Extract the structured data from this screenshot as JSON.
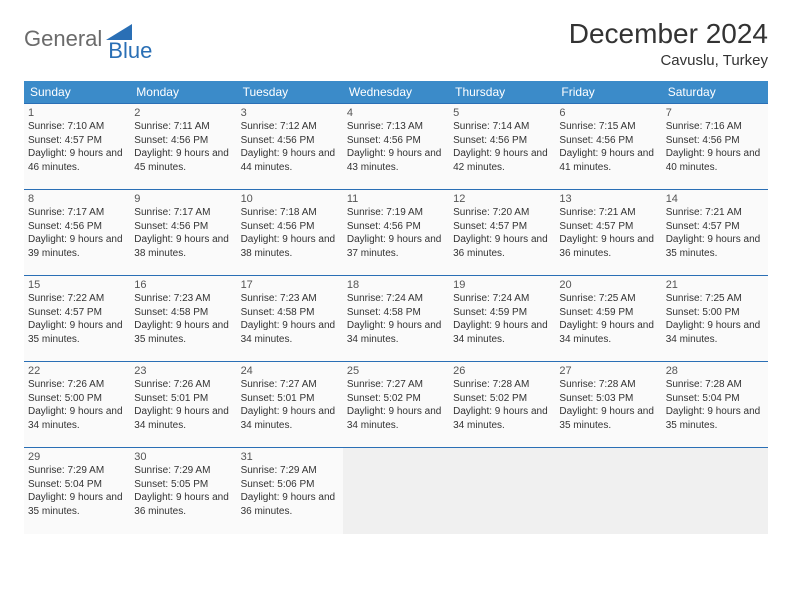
{
  "brand": {
    "general": "General",
    "blue": "Blue"
  },
  "title": "December 2024",
  "location": "Cavuslu, Turkey",
  "colors": {
    "header_bg": "#3b8bc9",
    "header_text": "#ffffff",
    "border": "#2a6fb5",
    "cell_bg": "#fafafa",
    "empty_bg": "#f0f0f0",
    "page_bg": "#ffffff",
    "text": "#333333",
    "logo_gray": "#6b6b6b",
    "logo_blue": "#2a6fb5"
  },
  "weekdays": [
    "Sunday",
    "Monday",
    "Tuesday",
    "Wednesday",
    "Thursday",
    "Friday",
    "Saturday"
  ],
  "days": [
    {
      "n": 1,
      "sr": "7:10 AM",
      "ss": "4:57 PM",
      "dl": "9 hours and 46 minutes."
    },
    {
      "n": 2,
      "sr": "7:11 AM",
      "ss": "4:56 PM",
      "dl": "9 hours and 45 minutes."
    },
    {
      "n": 3,
      "sr": "7:12 AM",
      "ss": "4:56 PM",
      "dl": "9 hours and 44 minutes."
    },
    {
      "n": 4,
      "sr": "7:13 AM",
      "ss": "4:56 PM",
      "dl": "9 hours and 43 minutes."
    },
    {
      "n": 5,
      "sr": "7:14 AM",
      "ss": "4:56 PM",
      "dl": "9 hours and 42 minutes."
    },
    {
      "n": 6,
      "sr": "7:15 AM",
      "ss": "4:56 PM",
      "dl": "9 hours and 41 minutes."
    },
    {
      "n": 7,
      "sr": "7:16 AM",
      "ss": "4:56 PM",
      "dl": "9 hours and 40 minutes."
    },
    {
      "n": 8,
      "sr": "7:17 AM",
      "ss": "4:56 PM",
      "dl": "9 hours and 39 minutes."
    },
    {
      "n": 9,
      "sr": "7:17 AM",
      "ss": "4:56 PM",
      "dl": "9 hours and 38 minutes."
    },
    {
      "n": 10,
      "sr": "7:18 AM",
      "ss": "4:56 PM",
      "dl": "9 hours and 38 minutes."
    },
    {
      "n": 11,
      "sr": "7:19 AM",
      "ss": "4:56 PM",
      "dl": "9 hours and 37 minutes."
    },
    {
      "n": 12,
      "sr": "7:20 AM",
      "ss": "4:57 PM",
      "dl": "9 hours and 36 minutes."
    },
    {
      "n": 13,
      "sr": "7:21 AM",
      "ss": "4:57 PM",
      "dl": "9 hours and 36 minutes."
    },
    {
      "n": 14,
      "sr": "7:21 AM",
      "ss": "4:57 PM",
      "dl": "9 hours and 35 minutes."
    },
    {
      "n": 15,
      "sr": "7:22 AM",
      "ss": "4:57 PM",
      "dl": "9 hours and 35 minutes."
    },
    {
      "n": 16,
      "sr": "7:23 AM",
      "ss": "4:58 PM",
      "dl": "9 hours and 35 minutes."
    },
    {
      "n": 17,
      "sr": "7:23 AM",
      "ss": "4:58 PM",
      "dl": "9 hours and 34 minutes."
    },
    {
      "n": 18,
      "sr": "7:24 AM",
      "ss": "4:58 PM",
      "dl": "9 hours and 34 minutes."
    },
    {
      "n": 19,
      "sr": "7:24 AM",
      "ss": "4:59 PM",
      "dl": "9 hours and 34 minutes."
    },
    {
      "n": 20,
      "sr": "7:25 AM",
      "ss": "4:59 PM",
      "dl": "9 hours and 34 minutes."
    },
    {
      "n": 21,
      "sr": "7:25 AM",
      "ss": "5:00 PM",
      "dl": "9 hours and 34 minutes."
    },
    {
      "n": 22,
      "sr": "7:26 AM",
      "ss": "5:00 PM",
      "dl": "9 hours and 34 minutes."
    },
    {
      "n": 23,
      "sr": "7:26 AM",
      "ss": "5:01 PM",
      "dl": "9 hours and 34 minutes."
    },
    {
      "n": 24,
      "sr": "7:27 AM",
      "ss": "5:01 PM",
      "dl": "9 hours and 34 minutes."
    },
    {
      "n": 25,
      "sr": "7:27 AM",
      "ss": "5:02 PM",
      "dl": "9 hours and 34 minutes."
    },
    {
      "n": 26,
      "sr": "7:28 AM",
      "ss": "5:02 PM",
      "dl": "9 hours and 34 minutes."
    },
    {
      "n": 27,
      "sr": "7:28 AM",
      "ss": "5:03 PM",
      "dl": "9 hours and 35 minutes."
    },
    {
      "n": 28,
      "sr": "7:28 AM",
      "ss": "5:04 PM",
      "dl": "9 hours and 35 minutes."
    },
    {
      "n": 29,
      "sr": "7:29 AM",
      "ss": "5:04 PM",
      "dl": "9 hours and 35 minutes."
    },
    {
      "n": 30,
      "sr": "7:29 AM",
      "ss": "5:05 PM",
      "dl": "9 hours and 36 minutes."
    },
    {
      "n": 31,
      "sr": "7:29 AM",
      "ss": "5:06 PM",
      "dl": "9 hours and 36 minutes."
    }
  ],
  "labels": {
    "sunrise": "Sunrise:",
    "sunset": "Sunset:",
    "daylight": "Daylight:"
  },
  "layout": {
    "start_weekday": 0,
    "rows": 5,
    "cols": 7
  }
}
